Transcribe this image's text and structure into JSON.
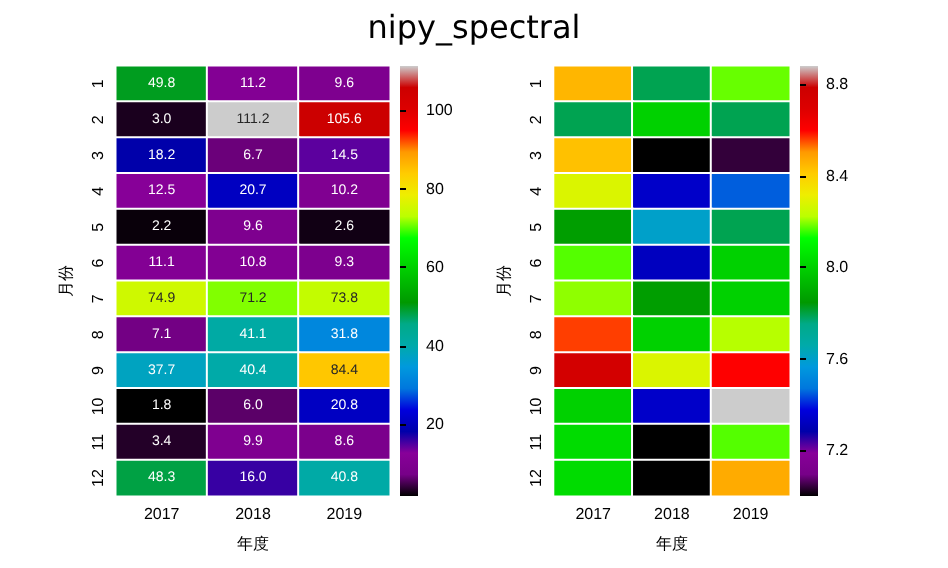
{
  "chart_data": [
    {
      "type": "heatmap",
      "title": "nipy_spectral",
      "xlabel": "年度",
      "ylabel": "月份",
      "categories": [
        "2017",
        "2018",
        "2019"
      ],
      "y_categories": [
        "1",
        "2",
        "3",
        "4",
        "5",
        "6",
        "7",
        "8",
        "9",
        "10",
        "11",
        "12"
      ],
      "cells": [
        [
          49.8,
          11.2,
          9.6
        ],
        [
          3.0,
          111.2,
          105.6
        ],
        [
          18.2,
          6.7,
          14.5
        ],
        [
          12.5,
          20.7,
          10.2
        ],
        [
          2.2,
          9.6,
          2.6
        ],
        [
          11.1,
          10.8,
          9.3
        ],
        [
          74.9,
          71.2,
          73.8
        ],
        [
          7.1,
          41.1,
          31.8
        ],
        [
          37.7,
          40.4,
          84.4
        ],
        [
          1.8,
          6.0,
          20.8
        ],
        [
          3.4,
          9.9,
          8.6
        ],
        [
          48.3,
          16.0,
          40.8
        ]
      ],
      "cell_labels": [
        [
          "49.8",
          "11.2",
          "9.6"
        ],
        [
          "3.0",
          "111.2",
          "105.6"
        ],
        [
          "18.2",
          "6.7",
          "14.5"
        ],
        [
          "12.5",
          "20.7",
          "10.2"
        ],
        [
          "2.2",
          "9.6",
          "2.6"
        ],
        [
          "11.1",
          "10.8",
          "9.3"
        ],
        [
          "74.9",
          "71.2",
          "73.8"
        ],
        [
          "7.1",
          "41.1",
          "31.8"
        ],
        [
          "37.7",
          "40.4",
          "84.4"
        ],
        [
          "1.8",
          "6.0",
          "20.8"
        ],
        [
          "3.4",
          "9.9",
          "8.6"
        ],
        [
          "48.3",
          "16.0",
          "40.8"
        ]
      ],
      "data_labels": true,
      "clim": [
        1.8,
        111.2
      ],
      "cticks": [
        20,
        40,
        60,
        80,
        100
      ]
    },
    {
      "type": "heatmap",
      "xlabel": "年度",
      "ylabel": "月份",
      "categories": [
        "2017",
        "2018",
        "2019"
      ],
      "y_categories": [
        "1",
        "2",
        "3",
        "4",
        "5",
        "6",
        "7",
        "8",
        "9",
        "10",
        "11",
        "12"
      ],
      "cells": [
        [
          8.45,
          7.79,
          8.18
        ],
        [
          7.79,
          8.0,
          7.79
        ],
        [
          8.43,
          7.0,
          7.04
        ],
        [
          8.28,
          7.34,
          7.45
        ],
        [
          7.86,
          7.6,
          7.79
        ],
        [
          8.17,
          7.32,
          8.0
        ],
        [
          8.2,
          7.86,
          8.0
        ],
        [
          8.56,
          8.0,
          8.22
        ],
        [
          8.75,
          8.28,
          8.6
        ],
        [
          8.0,
          7.34,
          8.88
        ],
        [
          8.03,
          7.0,
          8.17
        ],
        [
          8.03,
          7.0,
          8.47
        ]
      ],
      "clim": [
        7.0,
        8.88
      ],
      "cticks": [
        7.2,
        7.6,
        {
          "value": 8.0,
          "label": "8.0"
        },
        8.4,
        8.8
      ]
    }
  ]
}
